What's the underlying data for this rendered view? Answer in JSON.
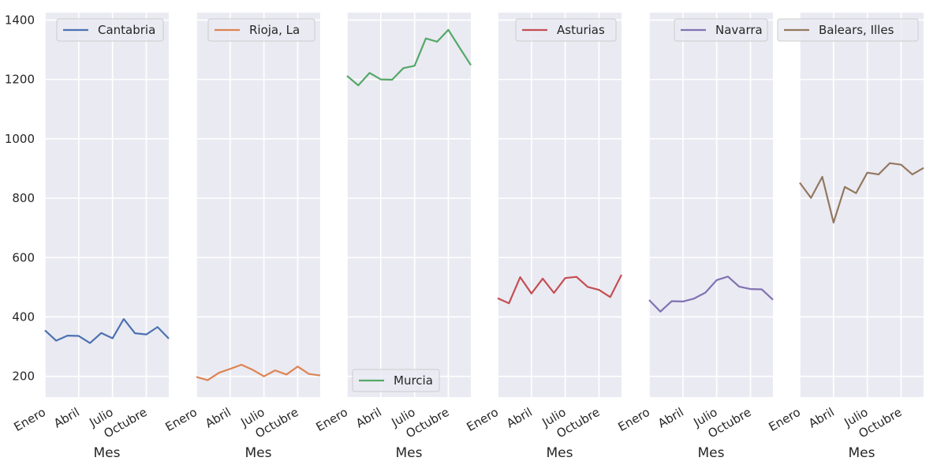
{
  "chart_data": {
    "type": "line",
    "shared_y": true,
    "ylim": [
      130,
      1425
    ],
    "yticks": [
      200,
      400,
      600,
      800,
      1000,
      1200,
      1400
    ],
    "x_index_range": [
      0,
      11
    ],
    "xticks": [
      {
        "index": 0,
        "label": "Enero"
      },
      {
        "index": 3,
        "label": "Abril"
      },
      {
        "index": 6,
        "label": "Julio"
      },
      {
        "index": 9,
        "label": "Octubre"
      }
    ],
    "xlabel": "Mes",
    "ylabel": "",
    "grid": true,
    "background": "#eaeaf2",
    "panels": [
      {
        "name": "Cantabria",
        "color": "#4c72b0",
        "legend": "top-right",
        "values": [
          355,
          320,
          337,
          336,
          312,
          346,
          328,
          393,
          345,
          341,
          366,
          327
        ]
      },
      {
        "name": "Rioja, La",
        "color": "#dd8452",
        "legend": "top-right",
        "values": [
          198,
          187,
          212,
          225,
          239,
          222,
          200,
          220,
          206,
          233,
          208,
          203
        ]
      },
      {
        "name": "Murcia",
        "color": "#55a868",
        "legend": "bottom-left",
        "values": [
          1212,
          1180,
          1222,
          1200,
          1199,
          1238,
          1246,
          1338,
          1327,
          1367,
          1307,
          1248
        ]
      },
      {
        "name": "Asturias",
        "color": "#c44e52",
        "legend": "top-right",
        "values": [
          463,
          446,
          534,
          479,
          529,
          481,
          531,
          535,
          501,
          491,
          467,
          542
        ]
      },
      {
        "name": "Navarra",
        "color": "#8172b3",
        "legend": "top-right",
        "values": [
          457,
          418,
          453,
          452,
          462,
          482,
          524,
          536,
          502,
          494,
          493,
          458
        ]
      },
      {
        "name": "Balears, Illes",
        "color": "#937860",
        "legend": "top-right",
        "values": [
          852,
          801,
          872,
          718,
          838,
          817,
          886,
          880,
          918,
          913,
          880,
          902
        ]
      }
    ]
  }
}
